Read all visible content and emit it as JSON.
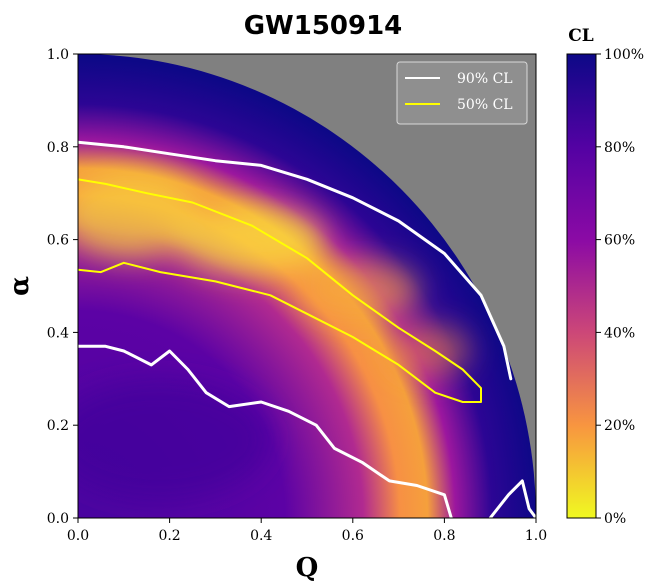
{
  "chart_data": {
    "type": "heatmap",
    "title": "GW150914",
    "xlabel": "Q",
    "ylabel": "α",
    "xlim": [
      0.0,
      1.0
    ],
    "ylim": [
      0.0,
      1.0
    ],
    "x_ticks": [
      "0.0",
      "0.2",
      "0.4",
      "0.6",
      "0.8",
      "1.0"
    ],
    "y_ticks": [
      "0.0",
      "0.2",
      "0.4",
      "0.6",
      "0.8",
      "1.0"
    ],
    "colorbar": {
      "title": "CL",
      "ticks": [
        "100%",
        "80%",
        "60%",
        "40%",
        "20%",
        "0%"
      ],
      "colormap": "plasma (reversed: yellow = 0%, dark blue = 100%)"
    },
    "excluded_region": "Q² + α² > 1 (gray)",
    "legend": {
      "placement": "top-right",
      "entries": [
        {
          "label": "90% CL",
          "color": "#ffffff"
        },
        {
          "label": "50% CL",
          "color": "#ffff00"
        }
      ]
    },
    "contours": [
      {
        "name": "90% CL",
        "color": "#ffffff",
        "points": [
          [
            0.0,
            0.81
          ],
          [
            0.1,
            0.8
          ],
          [
            0.2,
            0.785
          ],
          [
            0.3,
            0.77
          ],
          [
            0.4,
            0.76
          ],
          [
            0.5,
            0.73
          ],
          [
            0.6,
            0.69
          ],
          [
            0.7,
            0.64
          ],
          [
            0.8,
            0.57
          ],
          [
            0.88,
            0.48
          ],
          [
            0.93,
            0.37
          ],
          [
            0.945,
            0.3
          ]
        ]
      },
      {
        "name": "90% CL",
        "color": "#ffffff",
        "points": [
          [
            0.0,
            0.37
          ],
          [
            0.06,
            0.37
          ],
          [
            0.1,
            0.36
          ],
          [
            0.16,
            0.33
          ],
          [
            0.2,
            0.36
          ],
          [
            0.24,
            0.32
          ],
          [
            0.28,
            0.27
          ],
          [
            0.33,
            0.24
          ],
          [
            0.4,
            0.25
          ],
          [
            0.46,
            0.23
          ],
          [
            0.52,
            0.2
          ],
          [
            0.56,
            0.15
          ],
          [
            0.62,
            0.12
          ],
          [
            0.68,
            0.08
          ],
          [
            0.74,
            0.07
          ],
          [
            0.8,
            0.05
          ],
          [
            0.815,
            0.0
          ]
        ]
      },
      {
        "name": "90% CL",
        "color": "#ffffff",
        "points": [
          [
            0.9,
            0.0
          ],
          [
            0.94,
            0.05
          ],
          [
            0.97,
            0.08
          ],
          [
            0.985,
            0.02
          ],
          [
            1.0,
            0.0
          ]
        ]
      },
      {
        "name": "50% CL",
        "color": "#ffff00",
        "points": [
          [
            0.0,
            0.73
          ],
          [
            0.06,
            0.72
          ],
          [
            0.15,
            0.7
          ],
          [
            0.25,
            0.68
          ],
          [
            0.38,
            0.63
          ],
          [
            0.5,
            0.56
          ],
          [
            0.6,
            0.48
          ],
          [
            0.7,
            0.41
          ],
          [
            0.78,
            0.36
          ],
          [
            0.84,
            0.32
          ],
          [
            0.88,
            0.28
          ],
          [
            0.88,
            0.25
          ],
          [
            0.84,
            0.25
          ],
          [
            0.78,
            0.27
          ],
          [
            0.7,
            0.33
          ],
          [
            0.6,
            0.39
          ],
          [
            0.5,
            0.44
          ],
          [
            0.42,
            0.48
          ],
          [
            0.3,
            0.51
          ],
          [
            0.18,
            0.53
          ],
          [
            0.1,
            0.55
          ],
          [
            0.05,
            0.53
          ],
          [
            0.0,
            0.535
          ]
        ]
      }
    ]
  }
}
